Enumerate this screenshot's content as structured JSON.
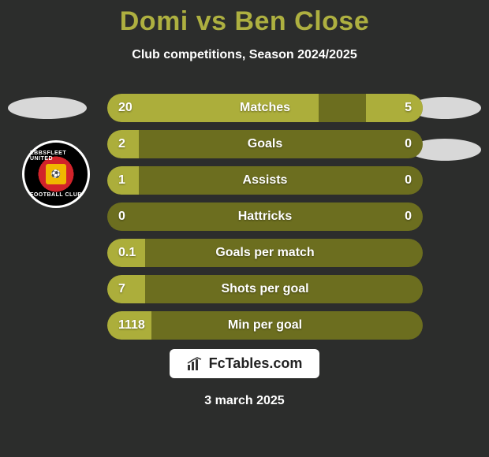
{
  "title": "Domi vs Ben Close",
  "subtitle": "Club competitions, Season 2024/2025",
  "date": "3 march 2025",
  "brand": "FcTables.com",
  "badge": {
    "top_text": "EBBSFLEET UNITED",
    "bottom_text": "FOOTBALL CLUB"
  },
  "colors": {
    "background": "#2c2d2c",
    "title": "#aeb040",
    "bar_track": "#6c6e1f",
    "bar_fill": "#acae3b",
    "text": "#ffffff"
  },
  "bars": [
    {
      "label": "Matches",
      "left_val": "20",
      "right_val": "5",
      "left_pct": 67,
      "right_pct": 18
    },
    {
      "label": "Goals",
      "left_val": "2",
      "right_val": "0",
      "left_pct": 10,
      "right_pct": 0
    },
    {
      "label": "Assists",
      "left_val": "1",
      "right_val": "0",
      "left_pct": 10,
      "right_pct": 0
    },
    {
      "label": "Hattricks",
      "left_val": "0",
      "right_val": "0",
      "left_pct": 0,
      "right_pct": 0
    },
    {
      "label": "Goals per match",
      "left_val": "0.1",
      "right_val": "",
      "left_pct": 12,
      "right_pct": 0
    },
    {
      "label": "Shots per goal",
      "left_val": "7",
      "right_val": "",
      "left_pct": 12,
      "right_pct": 0
    },
    {
      "label": "Min per goal",
      "left_val": "1118",
      "right_val": "",
      "left_pct": 14,
      "right_pct": 0
    }
  ]
}
